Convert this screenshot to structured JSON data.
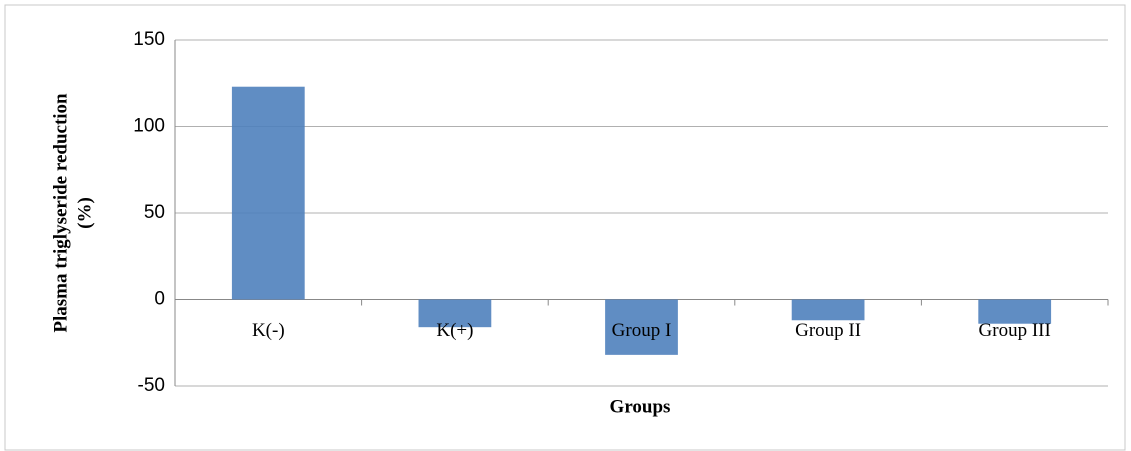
{
  "chart_data": {
    "type": "bar",
    "ylabel": [
      "Plasma triglyseride reduction",
      "(%)"
    ],
    "xlabel": "Groups",
    "categories": [
      "K(-)",
      "K(+)",
      "Group I",
      "Group II",
      "Group III"
    ],
    "values": [
      123,
      -16,
      -32,
      -12,
      -14
    ],
    "color": "#4f81bd",
    "ylim": [
      -50,
      150
    ],
    "yticks": [
      -50,
      0,
      50,
      100,
      150
    ],
    "grid": true
  }
}
